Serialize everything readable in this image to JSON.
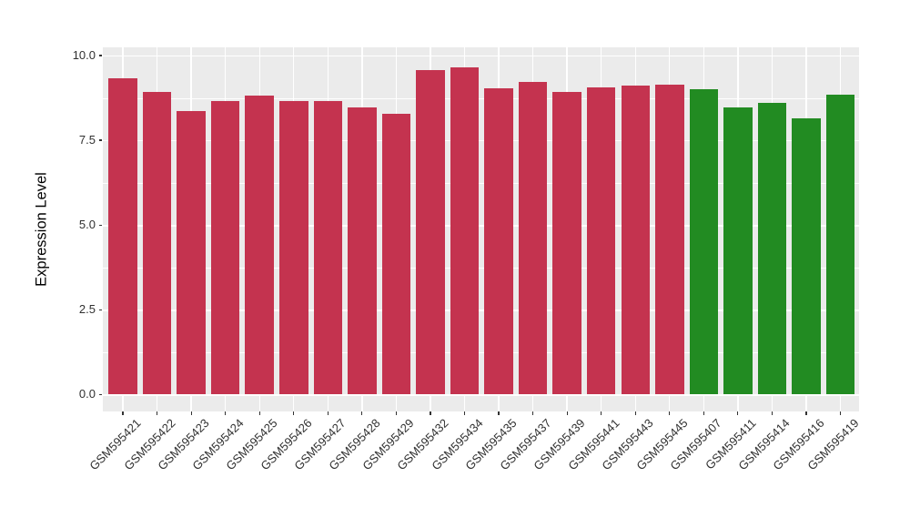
{
  "chart_data": {
    "type": "bar",
    "title": "",
    "xlabel": "",
    "ylabel": "Expression Level",
    "grid": true,
    "legend": "none",
    "y_axis": {
      "range": [
        0,
        10
      ],
      "ticks": [
        0,
        2.5,
        5,
        7.5,
        10
      ],
      "tick_labels": [
        "0.0",
        "2.5",
        "5.0",
        "7.5",
        "10.0"
      ],
      "minor_ticks": [
        1.25,
        3.75,
        6.25,
        8.75
      ]
    },
    "categories": [
      "GSM595421",
      "GSM595422",
      "GSM595423",
      "GSM595424",
      "GSM595425",
      "GSM595426",
      "GSM595427",
      "GSM595428",
      "GSM595429",
      "GSM595432",
      "GSM595434",
      "GSM595435",
      "GSM595437",
      "GSM595439",
      "GSM595441",
      "GSM595443",
      "GSM595445",
      "GSM595407",
      "GSM595411",
      "GSM595414",
      "GSM595416",
      "GSM595419"
    ],
    "values": [
      9.34,
      8.92,
      8.35,
      8.67,
      8.81,
      8.65,
      8.67,
      8.47,
      8.27,
      9.58,
      9.66,
      9.04,
      9.21,
      8.93,
      9.07,
      9.12,
      9.15,
      9.0,
      8.48,
      8.61,
      8.15,
      8.85
    ],
    "samples": [
      {
        "id": "GSM595421",
        "value": 9.34,
        "group": "red"
      },
      {
        "id": "GSM595422",
        "value": 8.92,
        "group": "red"
      },
      {
        "id": "GSM595423",
        "value": 8.35,
        "group": "red"
      },
      {
        "id": "GSM595424",
        "value": 8.67,
        "group": "red"
      },
      {
        "id": "GSM595425",
        "value": 8.81,
        "group": "red"
      },
      {
        "id": "GSM595426",
        "value": 8.65,
        "group": "red"
      },
      {
        "id": "GSM595427",
        "value": 8.67,
        "group": "red"
      },
      {
        "id": "GSM595428",
        "value": 8.47,
        "group": "red"
      },
      {
        "id": "GSM595429",
        "value": 8.27,
        "group": "red"
      },
      {
        "id": "GSM595432",
        "value": 9.58,
        "group": "red"
      },
      {
        "id": "GSM595434",
        "value": 9.66,
        "group": "red"
      },
      {
        "id": "GSM595435",
        "value": 9.04,
        "group": "red"
      },
      {
        "id": "GSM595437",
        "value": 9.21,
        "group": "red"
      },
      {
        "id": "GSM595439",
        "value": 8.93,
        "group": "red"
      },
      {
        "id": "GSM595441",
        "value": 9.07,
        "group": "red"
      },
      {
        "id": "GSM595443",
        "value": 9.12,
        "group": "red"
      },
      {
        "id": "GSM595445",
        "value": 9.15,
        "group": "red"
      },
      {
        "id": "GSM595407",
        "value": 9.0,
        "group": "green"
      },
      {
        "id": "GSM595411",
        "value": 8.48,
        "group": "green"
      },
      {
        "id": "GSM595414",
        "value": 8.61,
        "group": "green"
      },
      {
        "id": "GSM595416",
        "value": 8.15,
        "group": "green"
      },
      {
        "id": "GSM595419",
        "value": 8.85,
        "group": "green"
      }
    ],
    "group_colors": {
      "red": "#C4334F",
      "green": "#228B22"
    },
    "panel_background": "#EBEBEB",
    "gridline_color": "#FFFFFF",
    "axis_text_color": "#303030"
  }
}
